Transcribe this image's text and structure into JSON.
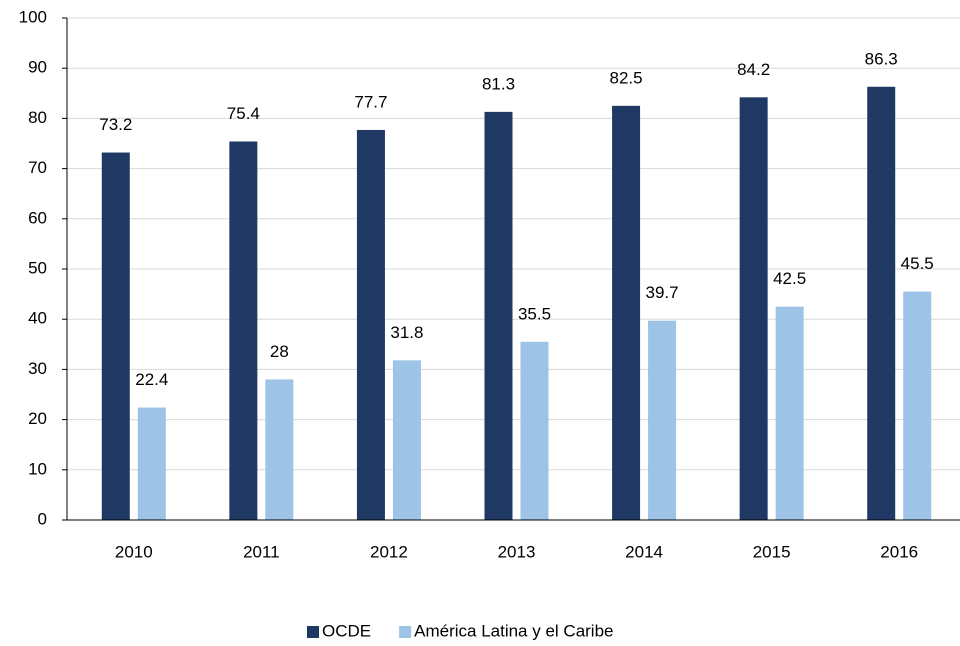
{
  "chart_data": {
    "type": "bar",
    "categories": [
      "2010",
      "2011",
      "2012",
      "2013",
      "2014",
      "2015",
      "2016"
    ],
    "series": [
      {
        "name": "OCDE",
        "color": "#1f3864",
        "values": [
          73.2,
          75.4,
          77.7,
          81.3,
          82.5,
          84.2,
          86.3
        ]
      },
      {
        "name": "América Latina y el Caribe",
        "color": "#9dc3e6",
        "values": [
          22.4,
          28,
          31.8,
          35.5,
          39.7,
          42.5,
          45.5
        ]
      }
    ],
    "ylim": [
      0,
      100
    ],
    "yticks": [
      0,
      10,
      20,
      30,
      40,
      50,
      60,
      70,
      80,
      90,
      100
    ],
    "grid": true,
    "legend": "bottom"
  }
}
